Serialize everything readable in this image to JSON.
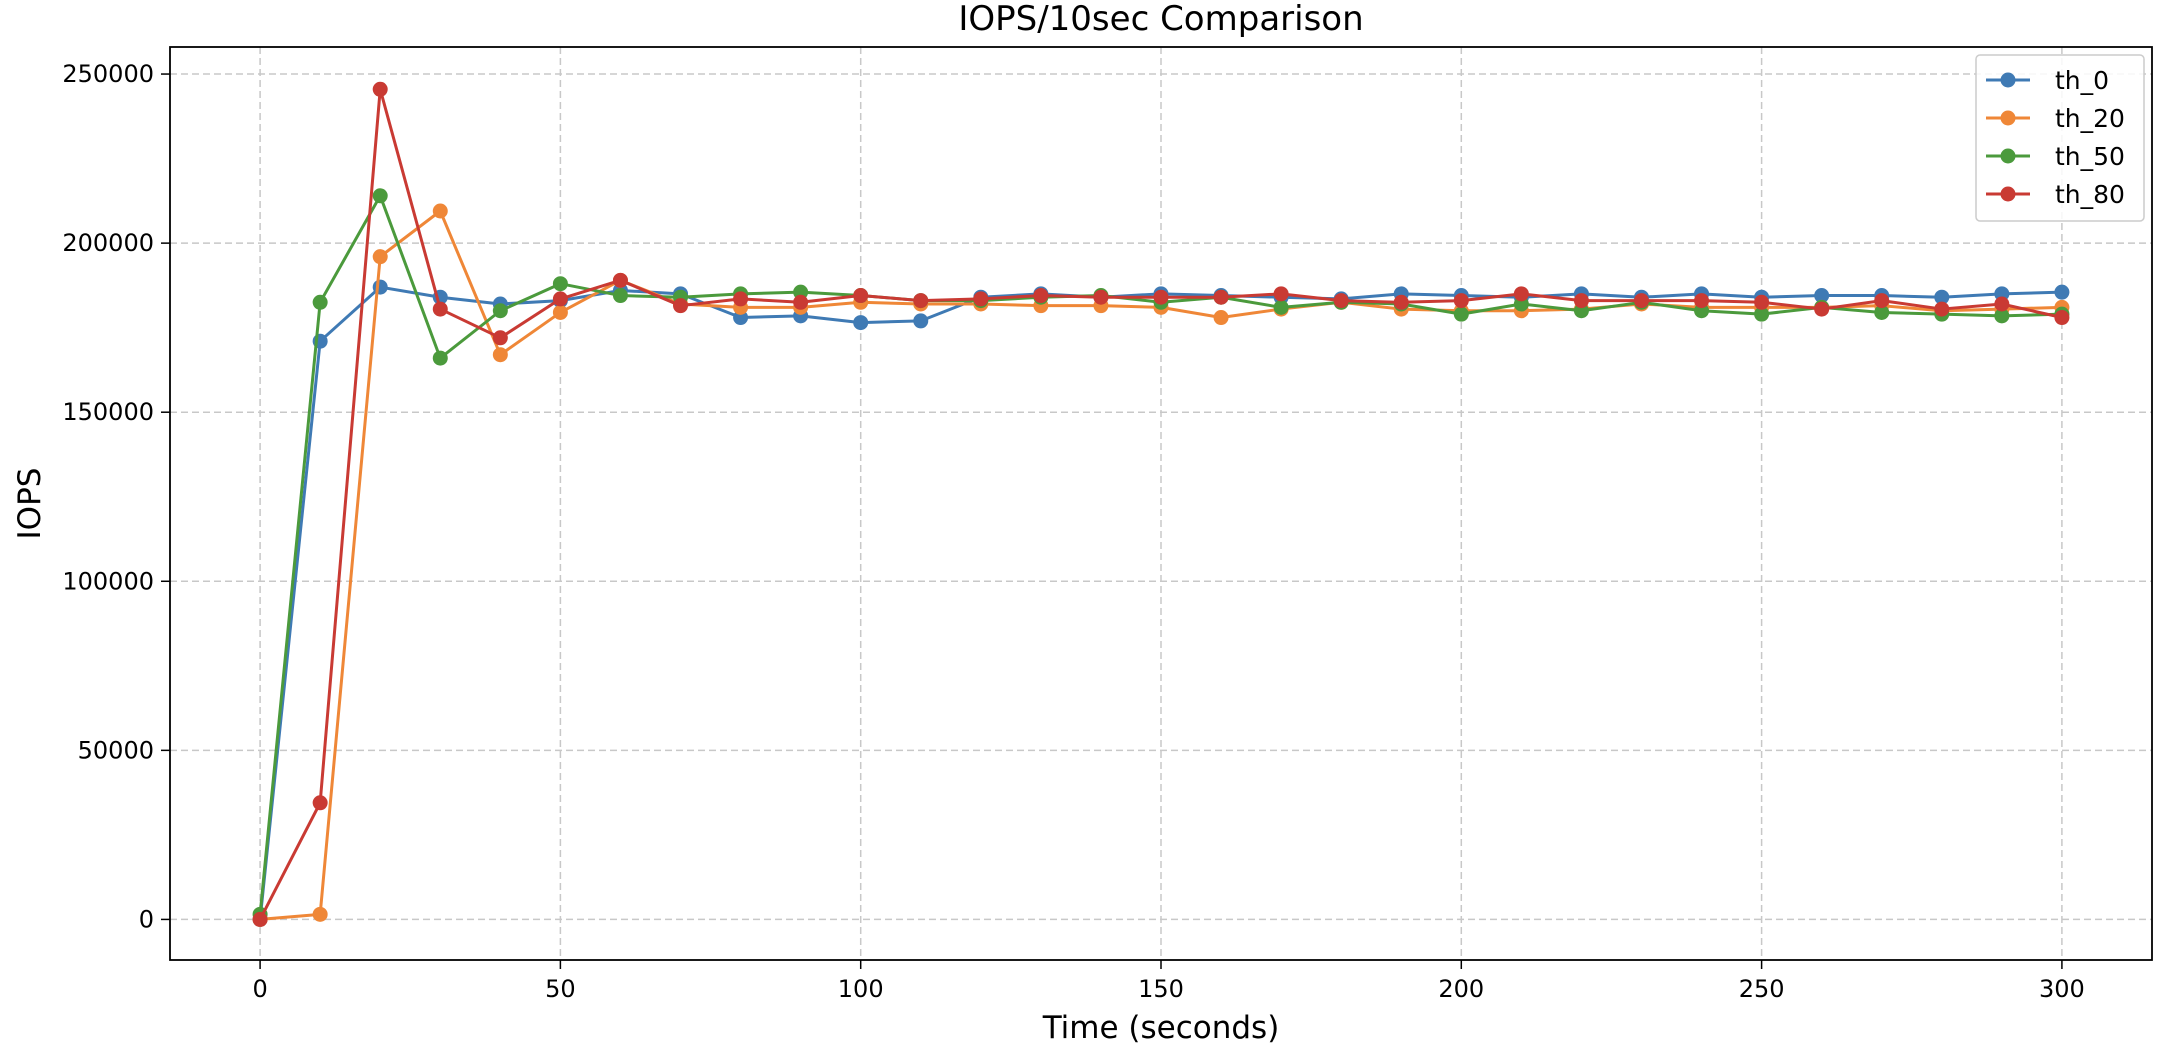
{
  "chart_data": {
    "type": "line",
    "title": "IOPS/10sec Comparison",
    "xlabel": "Time (seconds)",
    "ylabel": "IOPS",
    "xlim": [
      -15,
      315
    ],
    "ylim": [
      -12000,
      258000
    ],
    "x_ticks": [
      0,
      50,
      100,
      150,
      200,
      250,
      300
    ],
    "y_ticks": [
      0,
      50000,
      100000,
      150000,
      200000,
      250000
    ],
    "grid": true,
    "legend_position": "top-right",
    "markers": "circle",
    "x": [
      0,
      10,
      20,
      30,
      40,
      50,
      60,
      70,
      80,
      90,
      100,
      110,
      120,
      130,
      140,
      150,
      160,
      170,
      180,
      190,
      200,
      210,
      220,
      230,
      240,
      250,
      260,
      270,
      280,
      290,
      300
    ],
    "series": [
      {
        "name": "th_0",
        "color": "#3f7ab4",
        "values": [
          0,
          171000,
          187000,
          184000,
          182000,
          183000,
          186000,
          185000,
          178000,
          178500,
          176500,
          177000,
          184000,
          185000,
          184000,
          185000,
          184500,
          184000,
          183500,
          185000,
          184500,
          184000,
          185000,
          184000,
          185000,
          184000,
          184500,
          184500,
          184000,
          185000,
          185500
        ]
      },
      {
        "name": "th_20",
        "color": "#ef8737",
        "values": [
          0,
          1500,
          196000,
          209500,
          167000,
          179500,
          189000,
          182000,
          181000,
          181000,
          182500,
          182000,
          182000,
          181500,
          181500,
          181000,
          178000,
          180500,
          182500,
          180500,
          180000,
          180000,
          180500,
          182000,
          181000,
          181000,
          181000,
          181500,
          180000,
          180500,
          181000
        ]
      },
      {
        "name": "th_50",
        "color": "#4b9a3c",
        "values": [
          1500,
          182500,
          214000,
          166000,
          180000,
          188000,
          184500,
          184000,
          185000,
          185500,
          184500,
          183000,
          183000,
          184000,
          184500,
          182500,
          184000,
          181000,
          182500,
          182000,
          179000,
          182000,
          180000,
          182500,
          180000,
          179000,
          181000,
          179500,
          179000,
          178500,
          179000
        ]
      },
      {
        "name": "th_80",
        "color": "#c93a33",
        "values": [
          0,
          34500,
          245500,
          180500,
          172000,
          183500,
          189000,
          181500,
          183500,
          182500,
          184500,
          183000,
          183500,
          184500,
          184000,
          184000,
          184000,
          185000,
          183000,
          182500,
          183000,
          185000,
          183000,
          183000,
          183000,
          182500,
          180500,
          183000,
          180500,
          182000,
          178000
        ]
      }
    ]
  }
}
